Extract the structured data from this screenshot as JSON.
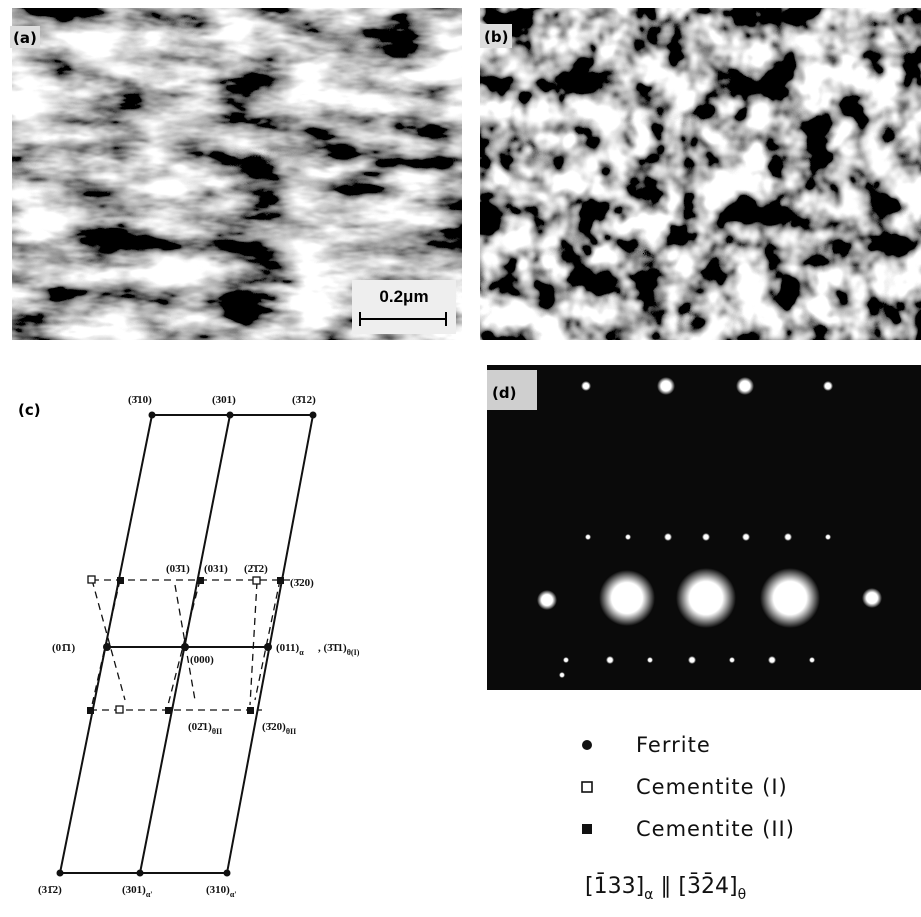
{
  "panels": {
    "a": "(a)",
    "b": "(b)",
    "c": "(c)",
    "d": "(d)"
  },
  "scale_bar": "0.2μm",
  "diagram_labels": [
    {
      "text": "(3̄10)"
    },
    {
      "text": "(301)"
    },
    {
      "text": "(3̄12)"
    },
    {
      "text": "(03̄1)"
    },
    {
      "text": "(031)"
    },
    {
      "text": "(2̄1̄2)"
    },
    {
      "text": "(3̄20)"
    },
    {
      "text": "(01̄1)"
    },
    {
      "text": "(000)"
    },
    {
      "text": "(011)",
      "sub": "α"
    },
    {
      "text": ", (3̄1̄1)",
      "sub": "θ(I)"
    },
    {
      "text": "(02̄1)",
      "sub": "θII"
    },
    {
      "text": "(3̄20)",
      "sub": "θII"
    },
    {
      "text": "(31̄2)"
    },
    {
      "text": "(301)",
      "sub": "α'"
    },
    {
      "text": "(310)",
      "sub": "α'"
    }
  ],
  "legend": [
    "Ferrite",
    "Cementite (I)",
    "Cementite (II)"
  ],
  "zone_axis": {
    "a": "[1̄33]",
    "a_sub": "α",
    "sep": " ∥ ",
    "b": "[3̄2̄4]",
    "b_sub": "θ"
  }
}
